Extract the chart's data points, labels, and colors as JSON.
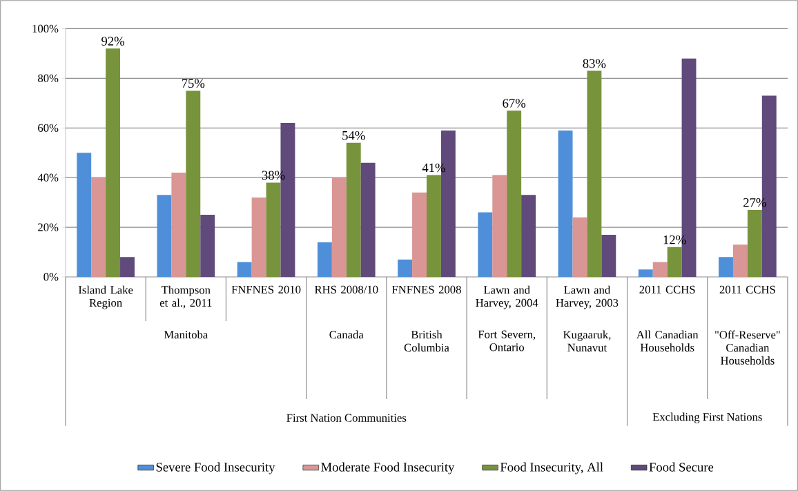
{
  "chart_data": {
    "type": "bar",
    "categories": [
      "Island Lake Region",
      "Thompson et al., 2011",
      "FNFNES 2010",
      "RHS 2008/10",
      "FNFNES 2008",
      "Lawn and Harvey, 2004",
      "Lawn and Harvey, 2003",
      "2011 CCHS",
      "2011 CCHS"
    ],
    "annotations": [
      "Manitoba",
      "Canada",
      "British Columbia",
      "Fort Severn, Ontario",
      "Kugaaruk, Nunavut",
      "All Canadian Households",
      "\"Off-Reserve\" Canadian Households",
      "First Nation Communities",
      "Excluding First Nations"
    ],
    "series": [
      {
        "name": "Severe Food Insecurity",
        "color": "#4f8fd9",
        "values": [
          50,
          33,
          6,
          14,
          7,
          26,
          59,
          3,
          8
        ]
      },
      {
        "name": "Moderate Food Insecurity",
        "color": "#d99694",
        "values": [
          40,
          42,
          32,
          40,
          34,
          41,
          24,
          6,
          13
        ]
      },
      {
        "name": "Food Insecurity, All",
        "color": "#77933c",
        "values": [
          92,
          75,
          38,
          54,
          41,
          67,
          83,
          12,
          27
        ],
        "value_labels": [
          "92%",
          "75%",
          "38%",
          "54%",
          "41%",
          "67%",
          "83%",
          "12%",
          "27%"
        ]
      },
      {
        "name": "Food Secure",
        "color": "#604a7b",
        "values": [
          8,
          25,
          62,
          46,
          59,
          33,
          17,
          88,
          73
        ]
      }
    ],
    "ylim": [
      0,
      100
    ],
    "yticks": [
      {
        "value": 0,
        "label": "0%"
      },
      {
        "value": 20,
        "label": "20%"
      },
      {
        "value": 40,
        "label": "40%"
      },
      {
        "value": 60,
        "label": "60%"
      },
      {
        "value": 80,
        "label": "80%"
      },
      {
        "value": 100,
        "label": "100%"
      }
    ],
    "grid": "y",
    "legend": "bottom"
  }
}
